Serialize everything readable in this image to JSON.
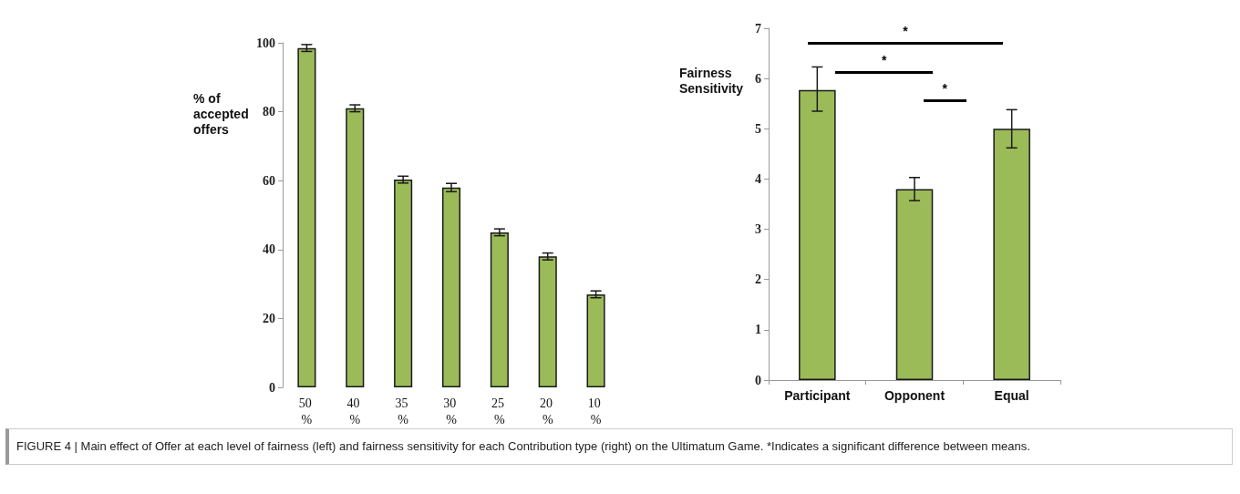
{
  "chart_data": [
    {
      "type": "bar",
      "ylabel": "% of accepted offers",
      "categories": [
        "50 %",
        "40 %",
        "35 %",
        "30 %",
        "25 %",
        "20 %",
        "10 %"
      ],
      "values": [
        98.5,
        81,
        60.3,
        58,
        45,
        38,
        27
      ],
      "errors": [
        1,
        1,
        1,
        1.2,
        1,
        1,
        1
      ],
      "color": "#9bbb59",
      "ylim": [
        0,
        100
      ],
      "yticks": [
        0,
        20,
        40,
        60,
        80,
        100
      ],
      "grid": false
    },
    {
      "type": "bar",
      "ylabel": "Fairness Sensitivity",
      "categories": [
        "Participant",
        "Opponent",
        "Equal"
      ],
      "values": [
        5.77,
        3.8,
        5.0
      ],
      "errors": [
        [
          5.35,
          6.23
        ],
        [
          3.57,
          4.03
        ],
        [
          4.62,
          5.38
        ]
      ],
      "color": "#9bbb59",
      "ylim": [
        0,
        7
      ],
      "yticks": [
        0,
        1,
        2,
        3,
        4,
        5,
        6,
        7
      ],
      "grid": false,
      "annotations": [
        "*",
        "*",
        "*",
        "FIGURE 4 | Main effect of Offer at each level of fairness (left) and fairness sensitivity for each Contribution type (right) on the Ultimatum Game. *Indicates a significant difference between means."
      ]
    }
  ]
}
